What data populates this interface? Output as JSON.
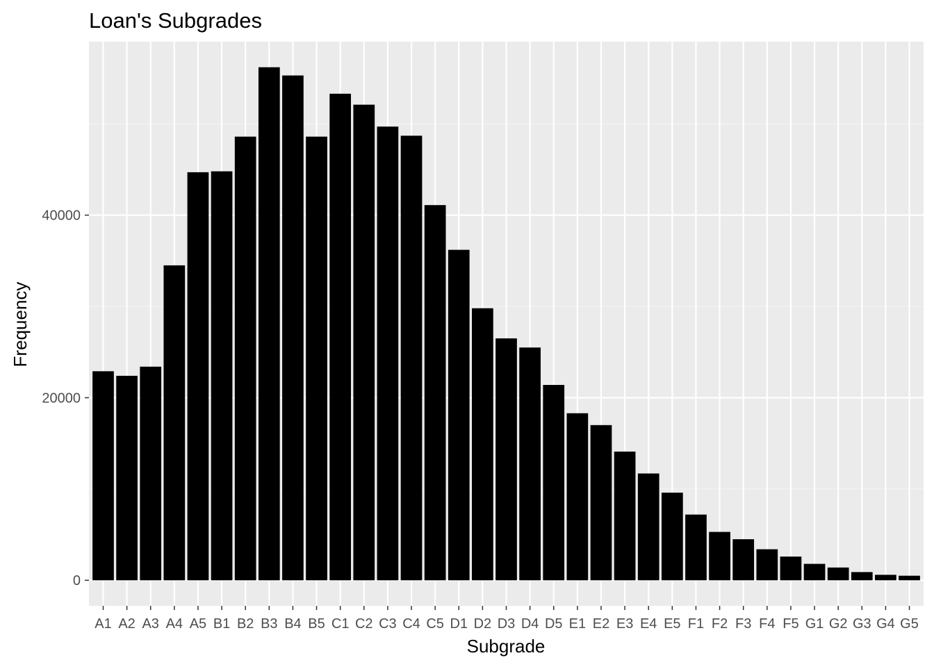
{
  "chart_data": {
    "type": "bar",
    "title": "Loan's Subgrades",
    "xlabel": "Subgrade",
    "ylabel": "Frequency",
    "categories": [
      "A1",
      "A2",
      "A3",
      "A4",
      "A5",
      "B1",
      "B2",
      "B3",
      "B4",
      "B5",
      "C1",
      "C2",
      "C3",
      "C4",
      "C5",
      "D1",
      "D2",
      "D3",
      "D4",
      "D5",
      "E1",
      "E2",
      "E3",
      "E4",
      "E5",
      "F1",
      "F2",
      "F3",
      "F4",
      "F5",
      "G1",
      "G2",
      "G3",
      "G4",
      "G5"
    ],
    "values": [
      22900,
      22400,
      23400,
      34500,
      44700,
      44800,
      48600,
      56200,
      55300,
      48600,
      53300,
      52100,
      49700,
      48700,
      41100,
      36200,
      29800,
      26500,
      25500,
      21400,
      18300,
      17000,
      14100,
      11700,
      9600,
      7200,
      5300,
      4500,
      3400,
      2600,
      1800,
      1400,
      900,
      600,
      500
    ],
    "y_ticks": [
      0,
      20000,
      40000
    ],
    "y_tick_labels": [
      "0",
      "20000",
      "40000"
    ],
    "ylim": [
      -2800,
      59000
    ],
    "grid": true,
    "colors": {
      "bar": "#000000",
      "panel": "#ebebeb",
      "grid_major": "#ffffff",
      "grid_minor": "#f4f4f4",
      "tick_text": "#4d4d4d"
    }
  }
}
